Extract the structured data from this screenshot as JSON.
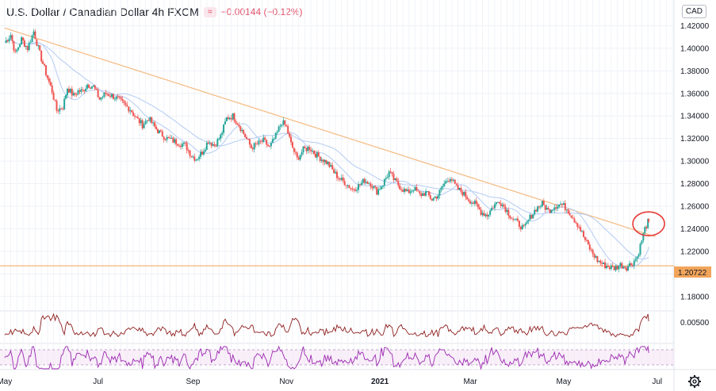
{
  "header": {
    "title": "U.S. Dollar / Canadian Dollar  4h  FXCM",
    "change_icon": "≈",
    "change": "−0.00144 (−0.12%)"
  },
  "currency_button": "CAD",
  "price_label": "1.20722",
  "indicator_value": "0.00500",
  "settings_icon": "gear-icon",
  "colors": {
    "candle_up": "#26a69a",
    "candle_down": "#ef5350",
    "trendline": "#f5b97f",
    "hline": "#f2a55a",
    "ma": "#b3cbf3",
    "osc": "#8e1e1e",
    "rsi": "#9c27b0",
    "circle": "#e53935"
  },
  "chart_data": {
    "type": "line",
    "series": [
      {
        "values": [
          [
            "2020-05-01",
            1.405
          ],
          [
            "2020-05-05",
            1.412
          ],
          [
            "2020-05-08",
            1.395
          ],
          [
            "2020-05-12",
            1.408
          ],
          [
            "2020-05-16",
            1.4
          ],
          [
            "2020-05-20",
            1.415
          ],
          [
            "2020-05-24",
            1.395
          ],
          [
            "2020-05-28",
            1.378
          ],
          [
            "2020-06-01",
            1.362
          ],
          [
            "2020-06-04",
            1.345
          ],
          [
            "2020-06-08",
            1.348
          ],
          [
            "2020-06-11",
            1.365
          ],
          [
            "2020-06-15",
            1.358
          ],
          [
            "2020-06-18",
            1.362
          ],
          [
            "2020-06-21",
            1.362
          ],
          [
            "2020-06-24",
            1.368
          ],
          [
            "2020-06-28",
            1.366
          ],
          [
            "2020-07-02",
            1.355
          ],
          [
            "2020-07-06",
            1.36
          ],
          [
            "2020-07-10",
            1.358
          ],
          [
            "2020-07-14",
            1.355
          ],
          [
            "2020-07-18",
            1.35
          ],
          [
            "2020-07-22",
            1.346
          ],
          [
            "2020-07-26",
            1.338
          ],
          [
            "2020-07-30",
            1.332
          ],
          [
            "2020-08-03",
            1.338
          ],
          [
            "2020-08-07",
            1.33
          ],
          [
            "2020-08-11",
            1.324
          ],
          [
            "2020-08-15",
            1.32
          ],
          [
            "2020-08-19",
            1.318
          ],
          [
            "2020-08-23",
            1.316
          ],
          [
            "2020-08-27",
            1.314
          ],
          [
            "2020-08-31",
            1.305
          ],
          [
            "2020-09-03",
            1.302
          ],
          [
            "2020-09-07",
            1.308
          ],
          [
            "2020-09-11",
            1.318
          ],
          [
            "2020-09-15",
            1.314
          ],
          [
            "2020-09-19",
            1.322
          ],
          [
            "2020-09-23",
            1.338
          ],
          [
            "2020-09-27",
            1.34
          ],
          [
            "2020-10-01",
            1.332
          ],
          [
            "2020-10-05",
            1.322
          ],
          [
            "2020-10-09",
            1.312
          ],
          [
            "2020-10-13",
            1.315
          ],
          [
            "2020-10-17",
            1.318
          ],
          [
            "2020-10-21",
            1.312
          ],
          [
            "2020-10-25",
            1.322
          ],
          [
            "2020-10-29",
            1.335
          ],
          [
            "2020-11-01",
            1.33
          ],
          [
            "2020-11-04",
            1.315
          ],
          [
            "2020-11-08",
            1.302
          ],
          [
            "2020-11-12",
            1.31
          ],
          [
            "2020-11-16",
            1.312
          ],
          [
            "2020-11-20",
            1.306
          ],
          [
            "2020-11-24",
            1.302
          ],
          [
            "2020-11-28",
            1.298
          ],
          [
            "2020-12-02",
            1.29
          ],
          [
            "2020-12-06",
            1.284
          ],
          [
            "2020-12-10",
            1.28
          ],
          [
            "2020-12-14",
            1.275
          ],
          [
            "2020-12-18",
            1.278
          ],
          [
            "2020-12-22",
            1.283
          ],
          [
            "2020-12-26",
            1.28
          ],
          [
            "2020-12-30",
            1.273
          ],
          [
            "2021-01-03",
            1.28
          ],
          [
            "2021-01-07",
            1.29
          ],
          [
            "2021-01-11",
            1.282
          ],
          [
            "2021-01-15",
            1.276
          ],
          [
            "2021-01-19",
            1.272
          ],
          [
            "2021-01-23",
            1.276
          ],
          [
            "2021-01-27",
            1.27
          ],
          [
            "2021-01-31",
            1.272
          ],
          [
            "2021-02-04",
            1.266
          ],
          [
            "2021-02-08",
            1.27
          ],
          [
            "2021-02-12",
            1.28
          ],
          [
            "2021-02-16",
            1.286
          ],
          [
            "2021-02-20",
            1.276
          ],
          [
            "2021-02-24",
            1.272
          ],
          [
            "2021-02-28",
            1.266
          ],
          [
            "2021-03-04",
            1.262
          ],
          [
            "2021-03-08",
            1.255
          ],
          [
            "2021-03-12",
            1.252
          ],
          [
            "2021-03-16",
            1.26
          ],
          [
            "2021-03-20",
            1.265
          ],
          [
            "2021-03-24",
            1.258
          ],
          [
            "2021-03-28",
            1.25
          ],
          [
            "2021-04-01",
            1.245
          ],
          [
            "2021-04-05",
            1.24
          ],
          [
            "2021-04-09",
            1.25
          ],
          [
            "2021-04-13",
            1.258
          ],
          [
            "2021-04-17",
            1.262
          ],
          [
            "2021-04-21",
            1.256
          ],
          [
            "2021-04-25",
            1.26
          ],
          [
            "2021-04-29",
            1.262
          ],
          [
            "2021-05-03",
            1.258
          ],
          [
            "2021-05-07",
            1.25
          ],
          [
            "2021-05-11",
            1.242
          ],
          [
            "2021-05-15",
            1.23
          ],
          [
            "2021-05-19",
            1.22
          ],
          [
            "2021-05-23",
            1.212
          ],
          [
            "2021-05-27",
            1.208
          ],
          [
            "2021-05-31",
            1.206
          ],
          [
            "2021-06-03",
            1.205
          ],
          [
            "2021-06-07",
            1.208
          ],
          [
            "2021-06-11",
            1.206
          ],
          [
            "2021-06-15",
            1.21
          ],
          [
            "2021-06-18",
            1.215
          ],
          [
            "2021-06-21",
            1.23
          ],
          [
            "2021-06-23",
            1.24
          ],
          [
            "2021-06-25",
            1.246
          ],
          [
            "2021-06-26",
            1.243
          ]
        ]
      }
    ],
    "x_ticks": [
      "May",
      "Jul",
      "Sep",
      "Nov",
      "2021",
      "Mar",
      "May",
      "Jul"
    ],
    "y_ticks": [
      "1.42000",
      "1.40000",
      "1.38000",
      "1.36000",
      "1.34000",
      "1.32000",
      "1.30000",
      "1.28000",
      "1.26000",
      "1.24000",
      "1.22000",
      "1.20000",
      "1.18000"
    ],
    "y_range": [
      1.17,
      1.44
    ],
    "horizontal_line": 1.20722,
    "trendline": [
      [
        "2020-05-01",
        1.418
      ],
      [
        "2021-06-30",
        1.233
      ]
    ],
    "grid": true
  }
}
